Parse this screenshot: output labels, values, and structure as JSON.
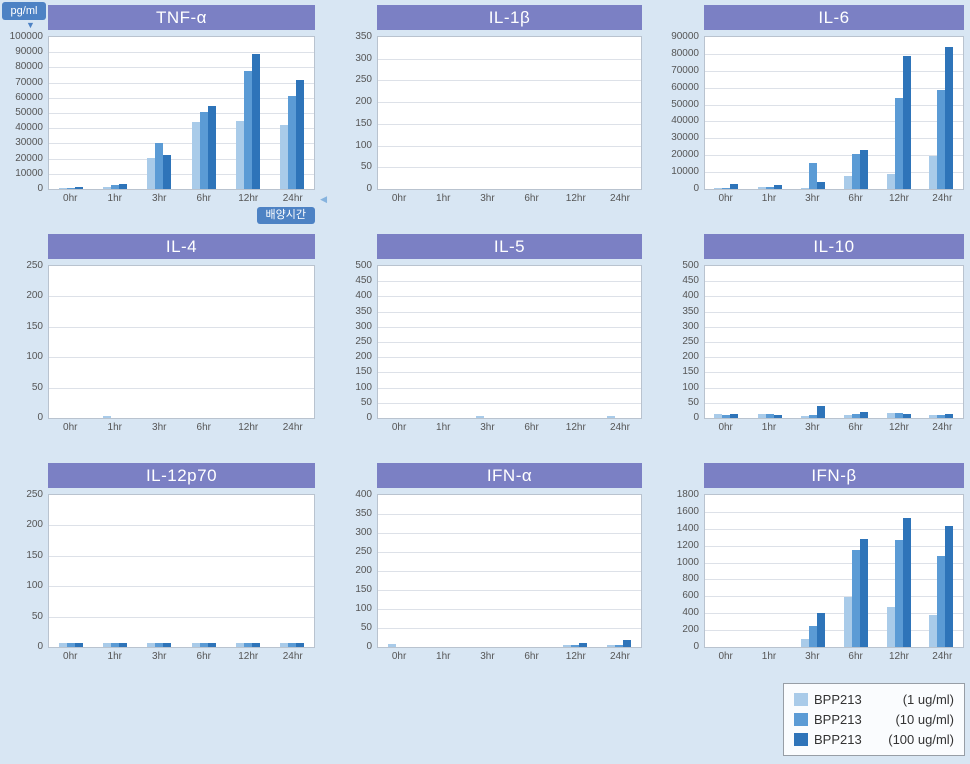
{
  "page": {
    "y_unit_label": "pg/ml",
    "x_axis_label": "배양시간"
  },
  "icons": {
    "y_arrow": "▼",
    "x_arrow": "◀"
  },
  "colors": {
    "header": "#7b80c4",
    "badge": "#4d82c4",
    "background": "#d8e6f3"
  },
  "legend": {
    "items": [
      {
        "name": "BPP213",
        "conc": "(1 ug/ml)",
        "color": "#a9cbe9"
      },
      {
        "name": "BPP213",
        "conc": "(10 ug/ml)",
        "color": "#5b9bd5"
      },
      {
        "name": "BPP213",
        "conc": "(100 ug/ml)",
        "color": "#2e74b9"
      }
    ]
  },
  "chart_data": [
    {
      "type": "bar",
      "title": "TNF-α",
      "categories": [
        "0hr",
        "1hr",
        "3hr",
        "6hr",
        "12hr",
        "24hr"
      ],
      "ymax": 100000,
      "ystep": 10000,
      "series": [
        {
          "name": "BPP213 (1 ug/ml)",
          "values": [
            600,
            1500,
            20500,
            44000,
            44500,
            42000
          ]
        },
        {
          "name": "BPP213 (10 ug/ml)",
          "values": [
            900,
            2500,
            30500,
            50500,
            77500,
            61500
          ]
        },
        {
          "name": "BPP213 (100 ug/ml)",
          "values": [
            1100,
            3200,
            22500,
            54500,
            88500,
            72000
          ]
        }
      ]
    },
    {
      "type": "bar",
      "title": "IL-1β",
      "categories": [
        "0hr",
        "1hr",
        "3hr",
        "6hr",
        "12hr",
        "24hr"
      ],
      "ymax": 350,
      "ystep": 50,
      "series": [
        {
          "name": "BPP213 (1 ug/ml)",
          "values": [
            0,
            0,
            0,
            0,
            0,
            0
          ]
        },
        {
          "name": "BPP213 (10 ug/ml)",
          "values": [
            0,
            0,
            0,
            0,
            0,
            0
          ]
        },
        {
          "name": "BPP213 (100 ug/ml)",
          "values": [
            0,
            0,
            0,
            0,
            0,
            0
          ]
        }
      ]
    },
    {
      "type": "bar",
      "title": "IL-6",
      "categories": [
        "0hr",
        "1hr",
        "3hr",
        "6hr",
        "12hr",
        "24hr"
      ],
      "ymax": 90000,
      "ystep": 10000,
      "series": [
        {
          "name": "BPP213 (1 ug/ml)",
          "values": [
            300,
            900,
            600,
            7500,
            8700,
            19500
          ]
        },
        {
          "name": "BPP213 (10 ug/ml)",
          "values": [
            500,
            1300,
            15500,
            21000,
            54000,
            58500
          ]
        },
        {
          "name": "BPP213 (100 ug/ml)",
          "values": [
            2800,
            2400,
            4000,
            23000,
            79000,
            84000
          ]
        }
      ]
    },
    {
      "type": "bar",
      "title": "IL-4",
      "categories": [
        "0hr",
        "1hr",
        "3hr",
        "6hr",
        "12hr",
        "24hr"
      ],
      "ymax": 250,
      "ystep": 50,
      "series": [
        {
          "name": "BPP213 (1 ug/ml)",
          "values": [
            0,
            4,
            0,
            0,
            0,
            0
          ]
        },
        {
          "name": "BPP213 (10 ug/ml)",
          "values": [
            0,
            0,
            0,
            0,
            0,
            0
          ]
        },
        {
          "name": "BPP213 (100 ug/ml)",
          "values": [
            0,
            0,
            0,
            0,
            0,
            0
          ]
        }
      ]
    },
    {
      "type": "bar",
      "title": "IL-5",
      "categories": [
        "0hr",
        "1hr",
        "3hr",
        "6hr",
        "12hr",
        "24hr"
      ],
      "ymax": 500,
      "ystep": 50,
      "series": [
        {
          "name": "BPP213 (1 ug/ml)",
          "values": [
            0,
            0,
            8,
            0,
            0,
            8
          ]
        },
        {
          "name": "BPP213 (10 ug/ml)",
          "values": [
            0,
            0,
            0,
            0,
            0,
            0
          ]
        },
        {
          "name": "BPP213 (100 ug/ml)",
          "values": [
            0,
            0,
            0,
            0,
            0,
            0
          ]
        }
      ]
    },
    {
      "type": "bar",
      "title": "IL-10",
      "categories": [
        "0hr",
        "1hr",
        "3hr",
        "6hr",
        "12hr",
        "24hr"
      ],
      "ymax": 500,
      "ystep": 50,
      "series": [
        {
          "name": "BPP213 (1 ug/ml)",
          "values": [
            12,
            12,
            8,
            10,
            18,
            10
          ]
        },
        {
          "name": "BPP213 (10 ug/ml)",
          "values": [
            10,
            12,
            10,
            14,
            16,
            10
          ]
        },
        {
          "name": "BPP213 (100 ug/ml)",
          "values": [
            12,
            10,
            38,
            20,
            14,
            14
          ]
        }
      ]
    },
    {
      "type": "bar",
      "title": "IL-12p70",
      "categories": [
        "0hr",
        "1hr",
        "3hr",
        "6hr",
        "12hr",
        "24hr"
      ],
      "ymax": 250,
      "ystep": 50,
      "series": [
        {
          "name": "BPP213 (1 ug/ml)",
          "values": [
            7,
            7,
            7,
            7,
            7,
            7
          ]
        },
        {
          "name": "BPP213 (10 ug/ml)",
          "values": [
            7,
            7,
            7,
            7,
            7,
            7
          ]
        },
        {
          "name": "BPP213 (100 ug/ml)",
          "values": [
            7,
            7,
            7,
            7,
            7,
            7
          ]
        }
      ]
    },
    {
      "type": "bar",
      "title": "IFN-α",
      "categories": [
        "0hr",
        "1hr",
        "3hr",
        "6hr",
        "12hr",
        "24hr"
      ],
      "ymax": 400,
      "ystep": 50,
      "series": [
        {
          "name": "BPP213 (1 ug/ml)",
          "values": [
            8,
            0,
            0,
            0,
            6,
            6
          ]
        },
        {
          "name": "BPP213 (10 ug/ml)",
          "values": [
            0,
            0,
            0,
            0,
            6,
            6
          ]
        },
        {
          "name": "BPP213 (100 ug/ml)",
          "values": [
            0,
            0,
            0,
            0,
            10,
            18
          ]
        }
      ]
    },
    {
      "type": "bar",
      "title": "IFN-β",
      "categories": [
        "0hr",
        "1hr",
        "3hr",
        "6hr",
        "12hr",
        "24hr"
      ],
      "ymax": 1800,
      "ystep": 200,
      "series": [
        {
          "name": "BPP213 (1 ug/ml)",
          "values": [
            0,
            0,
            100,
            590,
            470,
            380
          ]
        },
        {
          "name": "BPP213 (10 ug/ml)",
          "values": [
            0,
            0,
            250,
            1150,
            1270,
            1080
          ]
        },
        {
          "name": "BPP213 (100 ug/ml)",
          "values": [
            0,
            0,
            400,
            1280,
            1530,
            1430
          ]
        }
      ]
    }
  ]
}
